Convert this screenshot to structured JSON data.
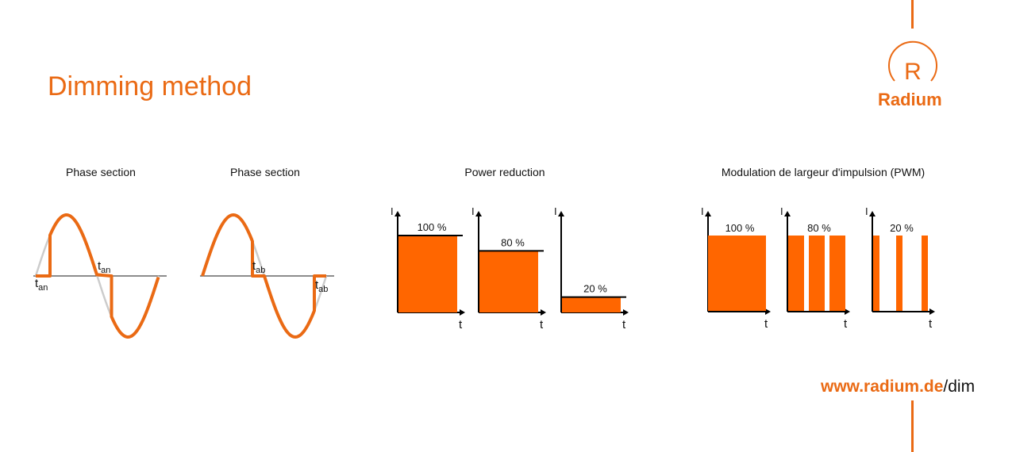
{
  "title": "Dimming method",
  "brand": {
    "name": "Radium",
    "logo_letter": "R",
    "color": "#ea6a14"
  },
  "url": {
    "domain": "www.radium.de",
    "path": "/dim"
  },
  "sections": {
    "phase_cut_on": {
      "title": "Phase section",
      "label": "t",
      "sub": "an"
    },
    "phase_cut_off": {
      "title": "Phase section",
      "label": "t",
      "sub": "ab"
    },
    "power_reduction": {
      "title": "Power reduction",
      "levels": [
        "100 %",
        "80 %",
        "20 %"
      ],
      "values": [
        100,
        80,
        20
      ]
    },
    "pwm": {
      "title": "Modulation de largeur d'impulsion (PWM)",
      "levels": [
        "100 %",
        "80 %",
        "20 %"
      ],
      "duty": [
        100,
        80,
        20
      ]
    }
  },
  "axis": {
    "y": "I",
    "x": "t"
  },
  "colors": {
    "accent": "#ff6600",
    "wave": "#ea6a14",
    "ghost": "#cccccc"
  }
}
